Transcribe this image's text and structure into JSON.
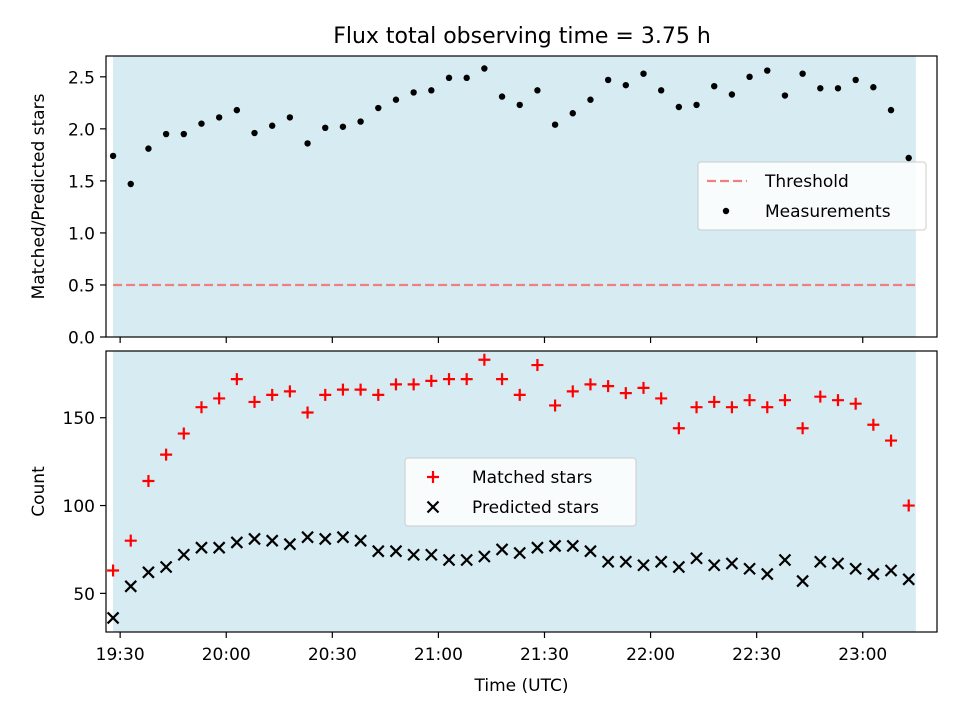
{
  "title": "Flux total observing time = 3.75 h",
  "colors": {
    "band": "#add8e6",
    "threshold": "#f08080",
    "matched": "#ff0000",
    "predicted": "#000000",
    "measurements": "#000000"
  },
  "chart_data": [
    {
      "type": "scatter",
      "panel": "top",
      "ylabel": "Matched/Predicted stars",
      "xlabel": "",
      "xlim": [
        "19:26",
        "23:21"
      ],
      "ylim": [
        0,
        2.7
      ],
      "yticks": [
        "0.0",
        "0.5",
        "1.0",
        "1.5",
        "2.0",
        "2.5"
      ],
      "observing_window": [
        "19:28",
        "23:15"
      ],
      "legend": {
        "placement": "center-right",
        "entries": [
          "Threshold",
          "Measurements"
        ]
      },
      "threshold": {
        "name": "Threshold",
        "value": 0.5,
        "style": "dashed"
      },
      "series": [
        {
          "name": "Measurements",
          "marker": "dot",
          "x": [
            "19:28",
            "19:33",
            "19:38",
            "19:43",
            "19:48",
            "19:53",
            "19:58",
            "20:03",
            "20:08",
            "20:13",
            "20:18",
            "20:23",
            "20:28",
            "20:33",
            "20:38",
            "20:43",
            "20:48",
            "20:53",
            "20:58",
            "21:03",
            "21:08",
            "21:13",
            "21:18",
            "21:23",
            "21:28",
            "21:33",
            "21:38",
            "21:43",
            "21:48",
            "21:53",
            "21:58",
            "22:03",
            "22:08",
            "22:13",
            "22:18",
            "22:23",
            "22:28",
            "22:33",
            "22:38",
            "22:43",
            "22:48",
            "22:53",
            "22:58",
            "23:03",
            "23:08",
            "23:13"
          ],
          "y": [
            1.74,
            1.47,
            1.81,
            1.95,
            1.95,
            2.05,
            2.11,
            2.18,
            1.96,
            2.03,
            2.11,
            1.86,
            2.01,
            2.02,
            2.07,
            2.2,
            2.28,
            2.35,
            2.37,
            2.49,
            2.49,
            2.58,
            2.31,
            2.23,
            2.37,
            2.04,
            2.15,
            2.28,
            2.47,
            2.42,
            2.53,
            2.37,
            2.21,
            2.23,
            2.41,
            2.33,
            2.5,
            2.56,
            2.32,
            2.53,
            2.39,
            2.39,
            2.47,
            2.4,
            2.18,
            1.72
          ]
        }
      ]
    },
    {
      "type": "scatter",
      "panel": "bottom",
      "ylabel": "Count",
      "xlabel": "Time (UTC)",
      "xlim": [
        "19:26",
        "23:21"
      ],
      "ylim": [
        28,
        188
      ],
      "yticks": [
        "50",
        "100",
        "150"
      ],
      "xticks": [
        "19:30",
        "20:00",
        "20:30",
        "21:00",
        "21:30",
        "22:00",
        "22:30",
        "23:00"
      ],
      "observing_window": [
        "19:28",
        "23:15"
      ],
      "legend": {
        "placement": "center",
        "entries": [
          "Matched stars",
          "Predicted stars"
        ]
      },
      "series": [
        {
          "name": "Matched stars",
          "marker": "plus",
          "x": [
            "19:28",
            "19:33",
            "19:38",
            "19:43",
            "19:48",
            "19:53",
            "19:58",
            "20:03",
            "20:08",
            "20:13",
            "20:18",
            "20:23",
            "20:28",
            "20:33",
            "20:38",
            "20:43",
            "20:48",
            "20:53",
            "20:58",
            "21:03",
            "21:08",
            "21:13",
            "21:18",
            "21:23",
            "21:28",
            "21:33",
            "21:38",
            "21:43",
            "21:48",
            "21:53",
            "21:58",
            "22:03",
            "22:08",
            "22:13",
            "22:18",
            "22:23",
            "22:28",
            "22:33",
            "22:38",
            "22:43",
            "22:48",
            "22:53",
            "22:58",
            "23:03",
            "23:08",
            "23:13"
          ],
          "y": [
            63,
            80,
            114,
            129,
            141,
            156,
            161,
            172,
            159,
            163,
            165,
            153,
            163,
            166,
            166,
            163,
            169,
            169,
            171,
            172,
            172,
            183,
            172,
            163,
            180,
            157,
            165,
            169,
            168,
            164,
            167,
            161,
            144,
            156,
            159,
            156,
            160,
            156,
            160,
            144,
            162,
            160,
            158,
            146,
            137,
            100
          ]
        },
        {
          "name": "Predicted stars",
          "marker": "x",
          "x": [
            "19:28",
            "19:33",
            "19:38",
            "19:43",
            "19:48",
            "19:53",
            "19:58",
            "20:03",
            "20:08",
            "20:13",
            "20:18",
            "20:23",
            "20:28",
            "20:33",
            "20:38",
            "20:43",
            "20:48",
            "20:53",
            "20:58",
            "21:03",
            "21:08",
            "21:13",
            "21:18",
            "21:23",
            "21:28",
            "21:33",
            "21:38",
            "21:43",
            "21:48",
            "21:53",
            "21:58",
            "22:03",
            "22:08",
            "22:13",
            "22:18",
            "22:23",
            "22:28",
            "22:33",
            "22:38",
            "22:43",
            "22:48",
            "22:53",
            "22:58",
            "23:03",
            "23:08",
            "23:13"
          ],
          "y": [
            36,
            54,
            62,
            65,
            72,
            76,
            76,
            79,
            81,
            80,
            78,
            82,
            81,
            82,
            80,
            74,
            74,
            72,
            72,
            69,
            69,
            71,
            75,
            73,
            76,
            77,
            77,
            74,
            68,
            68,
            66,
            68,
            65,
            70,
            66,
            67,
            64,
            61,
            69,
            57,
            68,
            67,
            64,
            61,
            63,
            58
          ]
        }
      ]
    }
  ]
}
